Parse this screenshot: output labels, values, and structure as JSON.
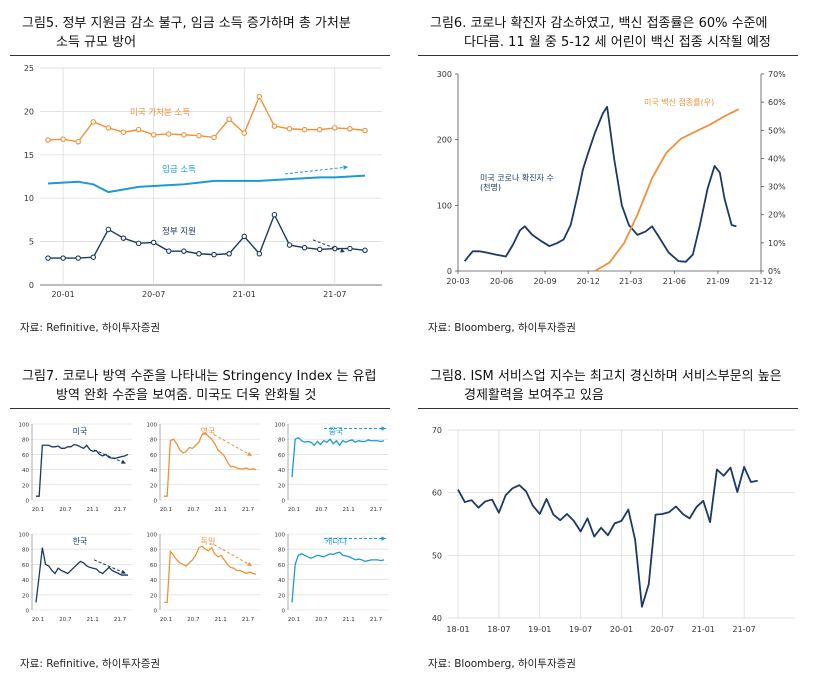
{
  "colors": {
    "navy": "#1a3a63",
    "orange": "#f0913a",
    "blue": "#1a9bd6",
    "axis": "#777",
    "grid": "#d8d8d8"
  },
  "fig5": {
    "title1": "그림5. 정부 지원금 감소 불구, 임금 소득 증가하며 총 가처분",
    "title2": "소득 규모 방어",
    "source": "자료: Refinitive, 하이투자증권",
    "chart_data": {
      "type": "line",
      "x_labels": [
        "20-01",
        "20-07",
        "21-01",
        "21-07"
      ],
      "y_ticks": [
        "0",
        "5",
        "10",
        "15",
        "20",
        "25"
      ],
      "ylim": [
        0,
        25
      ],
      "x": [
        "2019-12",
        "2020-01",
        "2020-02",
        "2020-03",
        "2020-04",
        "2020-05",
        "2020-06",
        "2020-07",
        "2020-08",
        "2020-09",
        "2020-10",
        "2020-11",
        "2020-12",
        "2021-01",
        "2021-02",
        "2021-03",
        "2021-04",
        "2021-05",
        "2021-06",
        "2021-07",
        "2021-08",
        "2021-09"
      ],
      "series": [
        {
          "name": "미국 가처분 소득",
          "values": [
            16.7,
            16.8,
            16.5,
            18.8,
            18.1,
            17.6,
            17.9,
            17.3,
            17.4,
            17.3,
            17.2,
            17.0,
            19.1,
            17.5,
            21.7,
            18.3,
            18.0,
            17.9,
            17.9,
            18.1,
            18.0,
            17.8
          ]
        },
        {
          "name": "임금 소득",
          "values": [
            11.7,
            11.8,
            11.9,
            11.6,
            10.7,
            11.0,
            11.3,
            11.4,
            11.5,
            11.6,
            11.8,
            12.0,
            12.0,
            12.0,
            12.0,
            12.1,
            12.2,
            12.3,
            12.4,
            12.4,
            12.5,
            12.6
          ]
        },
        {
          "name": "정부 지원",
          "values": [
            3.1,
            3.1,
            3.1,
            3.2,
            6.4,
            5.4,
            4.8,
            4.9,
            3.9,
            3.9,
            3.6,
            3.5,
            3.6,
            5.6,
            3.6,
            8.1,
            4.6,
            4.3,
            4.1,
            4.2,
            4.2,
            4.0
          ]
        }
      ]
    }
  },
  "fig6": {
    "title1": "그림6. 코로나 확진자 감소하였고, 백신 접종률은 60% 수준에",
    "title2": "다다름. 11 월 중 5-12 세 어린이 백신 접종 시작될 예정",
    "source": "자료: Bloomberg, 하이투자증권",
    "chart_data": {
      "type": "line",
      "x_labels": [
        "20-03",
        "20-06",
        "20-09",
        "20-12",
        "21-03",
        "21-06",
        "21-09",
        "21-12"
      ],
      "y_ticks_left": [
        "0",
        "100",
        "200",
        "300"
      ],
      "y_ticks_right": [
        "0%",
        "10%",
        "20%",
        "30%",
        "40%",
        "50%",
        "60%",
        "70%"
      ],
      "ylim_left": [
        0,
        300
      ],
      "ylim_right": [
        0,
        70
      ],
      "series": [
        {
          "name": "미국 코로나 확진자 수",
          "unit": "(천명)",
          "axis": "left",
          "x": [
            "2020-03-15",
            "2020-04-01",
            "2020-04-15",
            "2020-05-01",
            "2020-05-20",
            "2020-06-10",
            "2020-06-25",
            "2020-07-10",
            "2020-07-20",
            "2020-08-05",
            "2020-08-25",
            "2020-09-10",
            "2020-09-25",
            "2020-10-10",
            "2020-10-25",
            "2020-11-10",
            "2020-11-20",
            "2020-12-01",
            "2020-12-15",
            "2021-01-01",
            "2021-01-10",
            "2021-01-25",
            "2021-02-10",
            "2021-02-25",
            "2021-03-15",
            "2021-04-01",
            "2021-04-15",
            "2021-05-01",
            "2021-05-20",
            "2021-06-10",
            "2021-06-25",
            "2021-07-10",
            "2021-07-25",
            "2021-08-10",
            "2021-08-25",
            "2021-09-05",
            "2021-09-15",
            "2021-09-30",
            "2021-10-10"
          ],
          "values": [
            15,
            30,
            30,
            28,
            25,
            22,
            40,
            62,
            68,
            55,
            45,
            38,
            42,
            48,
            70,
            120,
            155,
            180,
            210,
            240,
            250,
            170,
            100,
            70,
            55,
            60,
            68,
            50,
            28,
            15,
            14,
            25,
            70,
            125,
            160,
            150,
            110,
            70,
            68
          ]
        },
        {
          "name": "미국 백신 접종률(우)",
          "axis": "right",
          "x": [
            "2020-12-15",
            "2021-01-15",
            "2021-02-15",
            "2021-03-15",
            "2021-04-15",
            "2021-05-15",
            "2021-06-15",
            "2021-07-15",
            "2021-08-15",
            "2021-09-15",
            "2021-10-15"
          ],
          "values": [
            0,
            3,
            10,
            20,
            33,
            42,
            47,
            49.5,
            52,
            55,
            57.5
          ]
        }
      ]
    }
  },
  "fig7": {
    "title1": "그림7. 코로나 방역 수준을 나타내는 Stringency Index 는 유럽",
    "title2": "방역 완화 수준을 보여줌. 미국도 더욱 완화될 것",
    "source": "자료: Refinitive, 하이투자증권",
    "y_ticks": [
      "0",
      "20",
      "40",
      "60",
      "80",
      "100"
    ],
    "x_labels": [
      "20.1",
      "20.7",
      "21.1",
      "21.7"
    ],
    "charts": [
      {
        "name": "미국",
        "color": "#1a3a63",
        "values": [
          5,
          5,
          72,
          72,
          72,
          70,
          70,
          71,
          68,
          68,
          70,
          70,
          73,
          72,
          70,
          68,
          72,
          66,
          64,
          65,
          60,
          58,
          60,
          56,
          55,
          55,
          56,
          57,
          58,
          60
        ]
      },
      {
        "name": "영국",
        "color": "#f0913a",
        "values": [
          5,
          5,
          78,
          80,
          74,
          66,
          62,
          64,
          69,
          68,
          72,
          76,
          86,
          88,
          84,
          80,
          74,
          66,
          62,
          58,
          50,
          44,
          44,
          42,
          41,
          41,
          42,
          40,
          41,
          40
        ]
      },
      {
        "name": "중국",
        "color": "#1a9bd6",
        "values": [
          30,
          80,
          82,
          78,
          76,
          77,
          76,
          72,
          77,
          73,
          78,
          76,
          80,
          74,
          78,
          72,
          78,
          76,
          78,
          79,
          76,
          78,
          77,
          77,
          79,
          78,
          78,
          78,
          77,
          78
        ]
      },
      {
        "name": "한국",
        "color": "#1a3a63",
        "values": [
          10,
          45,
          82,
          60,
          58,
          52,
          48,
          55,
          52,
          50,
          48,
          52,
          56,
          60,
          64,
          62,
          58,
          56,
          55,
          54,
          50,
          48,
          52,
          56,
          52,
          50,
          48,
          46,
          46,
          46
        ]
      },
      {
        "name": "독일",
        "color": "#f0913a",
        "values": [
          10,
          10,
          77,
          72,
          66,
          62,
          60,
          58,
          62,
          66,
          72,
          82,
          84,
          80,
          78,
          82,
          74,
          70,
          72,
          66,
          60,
          56,
          55,
          52,
          52,
          50,
          48,
          50,
          48,
          47
        ]
      },
      {
        "name": "캐나다",
        "color": "#1a9bd6",
        "values": [
          10,
          60,
          72,
          74,
          72,
          70,
          68,
          70,
          72,
          71,
          70,
          72,
          74,
          73,
          75,
          76,
          72,
          71,
          70,
          68,
          66,
          67,
          66,
          64,
          65,
          66,
          66,
          66,
          65,
          66
        ]
      }
    ]
  },
  "fig8": {
    "title1": "그림8. ISM 서비스업 지수는 최고치 경신하며 서비스부문의 높은",
    "title2": "경제활력을 보여주고 있음",
    "source": "자료: Bloomberg, 하이투자증권",
    "chart_data": {
      "type": "line",
      "x_labels": [
        "18-01",
        "18-07",
        "19-01",
        "19-07",
        "20-01",
        "20-07",
        "21-01",
        "21-07"
      ],
      "y_ticks": [
        "40",
        "50",
        "60",
        "70"
      ],
      "ylim": [
        40,
        70
      ],
      "x": [
        "2018-01",
        "2018-02",
        "2018-03",
        "2018-04",
        "2018-05",
        "2018-06",
        "2018-07",
        "2018-08",
        "2018-09",
        "2018-10",
        "2018-11",
        "2018-12",
        "2019-01",
        "2019-02",
        "2019-03",
        "2019-04",
        "2019-05",
        "2019-06",
        "2019-07",
        "2019-08",
        "2019-09",
        "2019-10",
        "2019-11",
        "2019-12",
        "2020-01",
        "2020-02",
        "2020-03",
        "2020-04",
        "2020-05",
        "2020-06",
        "2020-07",
        "2020-08",
        "2020-09",
        "2020-10",
        "2020-11",
        "2020-12",
        "2021-01",
        "2021-02",
        "2021-03",
        "2021-04",
        "2021-05",
        "2021-06",
        "2021-07",
        "2021-08",
        "2021-09"
      ],
      "values": [
        60.5,
        58.5,
        58.8,
        57.6,
        58.6,
        58.9,
        56.8,
        59.6,
        60.7,
        61.2,
        60.2,
        57.9,
        56.6,
        59.0,
        56.5,
        55.6,
        56.6,
        55.5,
        53.8,
        55.9,
        53.0,
        54.4,
        53.2,
        55.1,
        55.5,
        57.3,
        52.5,
        41.8,
        45.4,
        56.5,
        56.6,
        56.9,
        57.8,
        56.6,
        55.9,
        57.7,
        58.7,
        55.3,
        63.7,
        62.7,
        64.0,
        60.1,
        64.1,
        61.7,
        61.9
      ]
    }
  }
}
